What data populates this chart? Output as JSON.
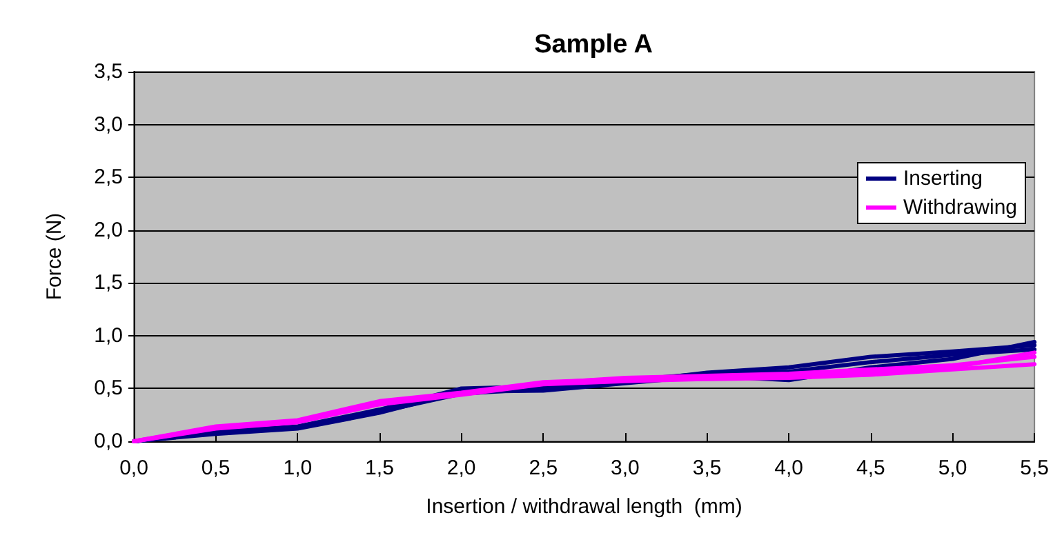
{
  "chart_data": {
    "type": "line",
    "title": "Sample A",
    "xlabel": "Insertion / withdrawal length  (mm)",
    "ylabel": "Force (N)",
    "x": [
      0,
      0.5,
      1,
      1.5,
      2,
      2.5,
      3,
      3.5,
      4,
      4.5,
      5,
      5.5
    ],
    "series": [
      {
        "name": "Inserting",
        "color": "#000080",
        "values": [
          0,
          0.07,
          0.12,
          0.27,
          0.47,
          0.48,
          0.55,
          0.62,
          0.58,
          0.7,
          0.78,
          0.94
        ]
      },
      {
        "color": "#000080",
        "values": [
          0,
          0.09,
          0.14,
          0.3,
          0.5,
          0.52,
          0.56,
          0.65,
          0.7,
          0.8,
          0.85,
          0.91
        ]
      },
      {
        "color": "#000080",
        "values": [
          0,
          0.08,
          0.13,
          0.28,
          0.45,
          0.5,
          0.58,
          0.64,
          0.66,
          0.75,
          0.82,
          0.87
        ]
      },
      {
        "name": "Withdrawing",
        "color": "#ff00ff",
        "values": [
          0,
          0.14,
          0.2,
          0.38,
          0.46,
          0.56,
          0.59,
          0.6,
          0.62,
          0.65,
          0.7,
          0.84
        ]
      },
      {
        "color": "#ff00ff",
        "values": [
          0,
          0.12,
          0.18,
          0.35,
          0.44,
          0.54,
          0.57,
          0.59,
          0.6,
          0.63,
          0.68,
          0.73
        ]
      },
      {
        "color": "#ff00ff",
        "values": [
          0,
          0.13,
          0.19,
          0.36,
          0.45,
          0.55,
          0.6,
          0.62,
          0.64,
          0.68,
          0.72,
          0.8
        ]
      }
    ],
    "xlim": [
      0,
      5.5
    ],
    "xticks": [
      {
        "value": 0,
        "label": "0,0"
      },
      {
        "value": 0.5,
        "label": "0,5"
      },
      {
        "value": 1,
        "label": "1,0"
      },
      {
        "value": 1.5,
        "label": "1,5"
      },
      {
        "value": 2,
        "label": "2,0"
      },
      {
        "value": 2.5,
        "label": "2,5"
      },
      {
        "value": 3,
        "label": "3,0"
      },
      {
        "value": 3.5,
        "label": "3,5"
      },
      {
        "value": 4,
        "label": "4,0"
      },
      {
        "value": 4.5,
        "label": "4,5"
      },
      {
        "value": 5,
        "label": "5,0"
      },
      {
        "value": 5.5,
        "label": "5,5"
      }
    ],
    "ylim": [
      0,
      3.5
    ],
    "yticks": [
      {
        "value": 0,
        "label": "0,0"
      },
      {
        "value": 0.5,
        "label": "0,5"
      },
      {
        "value": 1,
        "label": "1,0"
      },
      {
        "value": 1.5,
        "label": "1,5"
      },
      {
        "value": 2,
        "label": "2,0"
      },
      {
        "value": 2.5,
        "label": "2,5"
      },
      {
        "value": 3,
        "label": "3,0"
      },
      {
        "value": 3.5,
        "label": "3,5"
      }
    ],
    "grid": "y",
    "legend": "top right",
    "marker": "none",
    "line_style": "solid"
  }
}
